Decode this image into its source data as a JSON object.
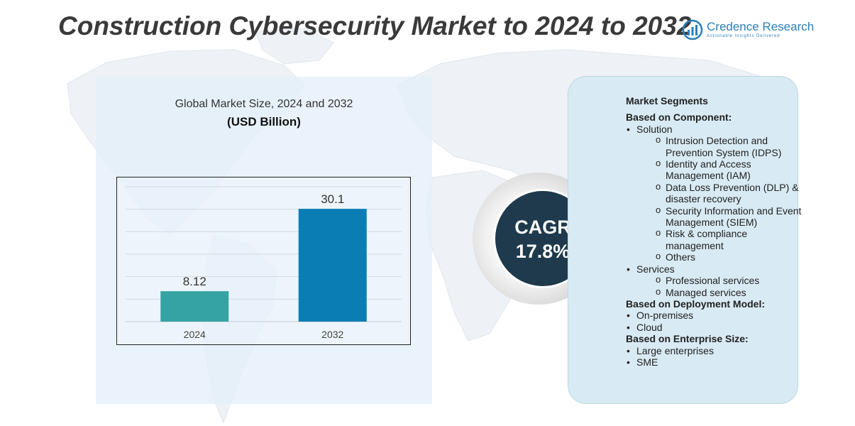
{
  "header": {
    "title": "Construction Cybersecurity Market to 2024 to 2032",
    "brand_name": "Credence Research",
    "brand_tagline": "Actionable Insights Delivered"
  },
  "left_panel": {
    "subtitle": "Global Market Size, 2024 and 2032",
    "unit": "(USD Billion)"
  },
  "chart_data": {
    "type": "bar",
    "title": "Global Market Size, 2024 and 2032",
    "ylabel": "(USD Billion)",
    "categories": [
      "2024",
      "2032"
    ],
    "values": [
      8.12,
      30.1
    ],
    "value_labels": [
      "8.12",
      "30.1"
    ],
    "ylim": [
      0,
      36
    ],
    "grid": true,
    "colors": [
      "#35a3a3",
      "#0a7db5"
    ]
  },
  "cagr": {
    "label": "CAGR",
    "value": "17.8%"
  },
  "segments": {
    "title": "Market Segments",
    "groups": [
      {
        "heading": "Based on Component:",
        "items": [
          {
            "label": "Solution",
            "children": [
              "Intrusion Detection and Prevention System (IDPS)",
              "Identity and Access Management (IAM)",
              "Data Loss Prevention (DLP) & disaster recovery",
              "Security Information and Event Management (SIEM)",
              "Risk & compliance management",
              "Others"
            ]
          },
          {
            "label": "Services",
            "children": [
              "Professional services",
              "Managed services"
            ]
          }
        ]
      },
      {
        "heading": "Based on Deployment Model:",
        "items": [
          {
            "label": "On-premises",
            "children": []
          },
          {
            "label": "Cloud",
            "children": []
          }
        ]
      },
      {
        "heading": "Based on Enterprise Size:",
        "items": [
          {
            "label": "Large enterprises",
            "children": []
          },
          {
            "label": "SME",
            "children": []
          }
        ]
      }
    ]
  }
}
